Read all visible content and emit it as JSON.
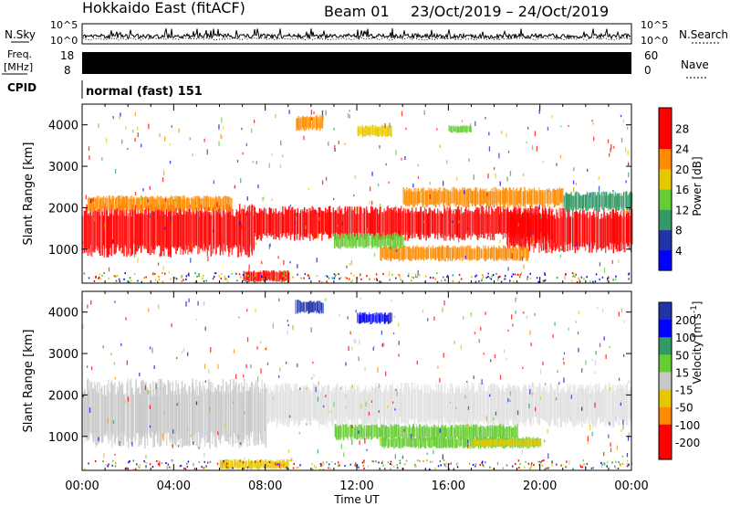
{
  "header": {
    "station": "Hokkaido East (fitACF)",
    "beam": "Beam 01",
    "date_range": "23/Oct/2019 – 24/Oct/2019"
  },
  "strips": {
    "nsky": {
      "label": "N.Sky",
      "tick_top": "10^5",
      "tick_bottom": "10^0"
    },
    "nsearch": {
      "label": "N.Search",
      "tick_top": "10^5",
      "tick_bottom": "10^0"
    },
    "freq": {
      "label_top": "Freq.",
      "label_unit": "[MHz]",
      "tick_top": "18",
      "tick_bottom": "8"
    },
    "nave": {
      "label": "Nave",
      "tick_top": "60",
      "tick_bottom": "0"
    },
    "cpid": {
      "label": "CPID",
      "value": "normal (fast) 151"
    }
  },
  "colors": {
    "red": "#ff0000",
    "orange": "#ff8c00",
    "yellow": "#e6c800",
    "green_light": "#66cc33",
    "green_mid": "#339966",
    "blue_dark": "#2233aa",
    "blue": "#0000ff",
    "gray": "#c8c8c8",
    "gray_light": "#e0e0e0"
  },
  "chart_data": [
    {
      "type": "heatmap",
      "quantity": "power",
      "ylabel": "Slant Range [km]",
      "xlabel": "",
      "x_ticks": [
        "00:00",
        "04:00",
        "08:00",
        "12:00",
        "16:00",
        "20:00",
        "00:00"
      ],
      "xlim_hours": [
        0,
        24
      ],
      "y_ticks": [
        1000,
        2000,
        3000,
        4000
      ],
      "ylim": [
        180,
        4500
      ],
      "colorbar": {
        "label": "Power [dB]",
        "ticks": [
          "4",
          "8",
          "12",
          "16",
          "20",
          "24",
          "28"
        ],
        "levels": [
          "blue",
          "blue_dark",
          "green_mid",
          "green_light",
          "yellow",
          "orange",
          "red",
          "red"
        ]
      },
      "regions": [
        {
          "t0": 0,
          "t1": 7.5,
          "r0": 800,
          "r1": 2100,
          "level": "red"
        },
        {
          "t0": 0.2,
          "t1": 6.5,
          "r0": 1900,
          "r1": 2300,
          "level": "orange"
        },
        {
          "t0": 7.5,
          "t1": 20.5,
          "r0": 1200,
          "r1": 2050,
          "level": "red"
        },
        {
          "t0": 18.5,
          "t1": 24,
          "r0": 900,
          "r1": 2000,
          "level": "red"
        },
        {
          "t0": 14,
          "t1": 21,
          "r0": 2000,
          "r1": 2500,
          "level": "orange"
        },
        {
          "t0": 21,
          "t1": 24,
          "r0": 1900,
          "r1": 2400,
          "level": "green_mid"
        },
        {
          "t0": 13,
          "t1": 19.5,
          "r0": 700,
          "r1": 1100,
          "level": "orange"
        },
        {
          "t0": 11,
          "t1": 14,
          "r0": 1000,
          "r1": 1400,
          "level": "green_light"
        },
        {
          "t0": 7,
          "t1": 9,
          "r0": 200,
          "r1": 500,
          "level": "red"
        },
        {
          "t0": 9.3,
          "t1": 10.5,
          "r0": 3850,
          "r1": 4250,
          "level": "orange"
        },
        {
          "t0": 12,
          "t1": 13.5,
          "r0": 3700,
          "r1": 4000,
          "level": "yellow"
        },
        {
          "t0": 16,
          "t1": 17,
          "r0": 3800,
          "r1": 4000,
          "level": "green_light"
        }
      ]
    },
    {
      "type": "heatmap",
      "quantity": "velocity",
      "ylabel": "Slant Range [km]",
      "xlabel": "Time UT",
      "x_ticks": [
        "00:00",
        "04:00",
        "08:00",
        "12:00",
        "16:00",
        "20:00",
        "00:00"
      ],
      "xlim_hours": [
        0,
        24
      ],
      "y_ticks": [
        1000,
        2000,
        3000,
        4000
      ],
      "ylim": [
        180,
        4500
      ],
      "colorbar": {
        "label": "Velocity [m s^-1]",
        "ticks": [
          "200",
          "100",
          "50",
          "15",
          "-15",
          "-50",
          "-100",
          "-200"
        ],
        "levels": [
          "blue_dark",
          "blue",
          "green_mid",
          "green_light",
          "gray",
          "yellow",
          "orange",
          "red",
          "red"
        ]
      },
      "regions": [
        {
          "t0": 0,
          "t1": 8,
          "r0": 700,
          "r1": 2400,
          "level": "gray"
        },
        {
          "t0": 8,
          "t1": 24,
          "r0": 1200,
          "r1": 2300,
          "level": "gray_light"
        },
        {
          "t0": 11,
          "t1": 19,
          "r0": 900,
          "r1": 1300,
          "level": "green_light"
        },
        {
          "t0": 13,
          "t1": 20,
          "r0": 700,
          "r1": 1000,
          "level": "green_light"
        },
        {
          "t0": 17,
          "t1": 20,
          "r0": 750,
          "r1": 950,
          "level": "yellow"
        },
        {
          "t0": 9.3,
          "t1": 10.5,
          "r0": 3950,
          "r1": 4300,
          "level": "blue_dark"
        },
        {
          "t0": 12,
          "t1": 13.5,
          "r0": 3700,
          "r1": 4000,
          "level": "blue"
        },
        {
          "t0": 6,
          "t1": 9,
          "r0": 200,
          "r1": 450,
          "level": "yellow"
        }
      ]
    }
  ]
}
